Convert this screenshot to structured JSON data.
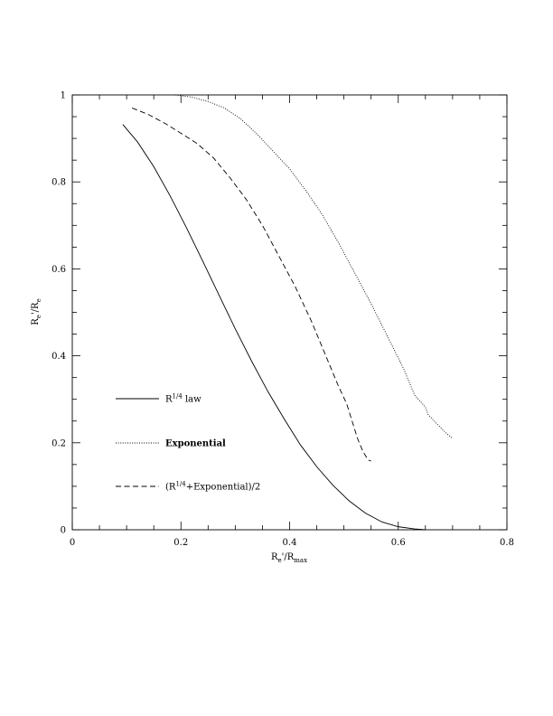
{
  "chart_data": {
    "type": "line",
    "title": "",
    "xlabel": {
      "main": "R",
      "sub1": "e",
      "prime": "'/R",
      "sub2": "max"
    },
    "ylabel": {
      "main": "R",
      "sub1": "e",
      "prime": "'/R",
      "sub2": "e"
    },
    "xlim": [
      0,
      0.8
    ],
    "ylim": [
      0,
      1
    ],
    "x_ticks": [
      {
        "value": 0,
        "label": "0"
      },
      {
        "value": 0.2,
        "label": "0.2"
      },
      {
        "value": 0.4,
        "label": "0.4"
      },
      {
        "value": 0.6,
        "label": "0.6"
      },
      {
        "value": 0.8,
        "label": "0.8"
      }
    ],
    "y_ticks": [
      {
        "value": 0,
        "label": "0"
      },
      {
        "value": 0.2,
        "label": "0.2"
      },
      {
        "value": 0.4,
        "label": "0.4"
      },
      {
        "value": 0.6,
        "label": "0.6"
      },
      {
        "value": 0.8,
        "label": "0.8"
      },
      {
        "value": 1,
        "label": "1"
      }
    ],
    "x_minor_step": 0.05,
    "y_minor_step": 0.05,
    "grid": false,
    "legend_position": "bottom-left",
    "series": [
      {
        "name": "R1/4 law",
        "legend": {
          "base": "R",
          "sup": "1/4",
          "suffix": " law",
          "bold": false
        },
        "dash": "solid",
        "x": [
          0.093,
          0.12,
          0.15,
          0.18,
          0.21,
          0.24,
          0.27,
          0.3,
          0.33,
          0.36,
          0.39,
          0.42,
          0.45,
          0.48,
          0.51,
          0.54,
          0.57,
          0.6,
          0.63,
          0.65
        ],
        "y": [
          0.932,
          0.892,
          0.835,
          0.768,
          0.695,
          0.618,
          0.54,
          0.462,
          0.388,
          0.318,
          0.255,
          0.195,
          0.145,
          0.102,
          0.066,
          0.038,
          0.018,
          0.007,
          0.002,
          0.0
        ]
      },
      {
        "name": "Exponential",
        "legend": {
          "base": "Exponential",
          "sup": "",
          "suffix": "",
          "bold": true
        },
        "dash": "dotted",
        "x": [
          0.19,
          0.22,
          0.25,
          0.28,
          0.31,
          0.34,
          0.37,
          0.4,
          0.43,
          0.46,
          0.49,
          0.52,
          0.55,
          0.58,
          0.61,
          0.63,
          0.65,
          0.655,
          0.67,
          0.69,
          0.7
        ],
        "y": [
          1.0,
          0.995,
          0.985,
          0.97,
          0.945,
          0.91,
          0.87,
          0.83,
          0.78,
          0.725,
          0.66,
          0.59,
          0.52,
          0.445,
          0.37,
          0.31,
          0.282,
          0.265,
          0.245,
          0.22,
          0.21
        ]
      },
      {
        "name": "(R1/4+Exponential)/2",
        "legend": {
          "base": "(R",
          "sup": "1/4",
          "suffix": "+Exponential)/2",
          "bold": false
        },
        "dash": "dashed",
        "x": [
          0.11,
          0.14,
          0.17,
          0.2,
          0.23,
          0.26,
          0.29,
          0.32,
          0.35,
          0.38,
          0.41,
          0.44,
          0.47,
          0.49,
          0.505,
          0.515,
          0.525,
          0.535,
          0.545,
          0.55
        ],
        "y": [
          0.97,
          0.955,
          0.935,
          0.912,
          0.888,
          0.855,
          0.81,
          0.76,
          0.7,
          0.63,
          0.56,
          0.48,
          0.39,
          0.33,
          0.29,
          0.25,
          0.21,
          0.18,
          0.16,
          0.158
        ]
      }
    ]
  }
}
